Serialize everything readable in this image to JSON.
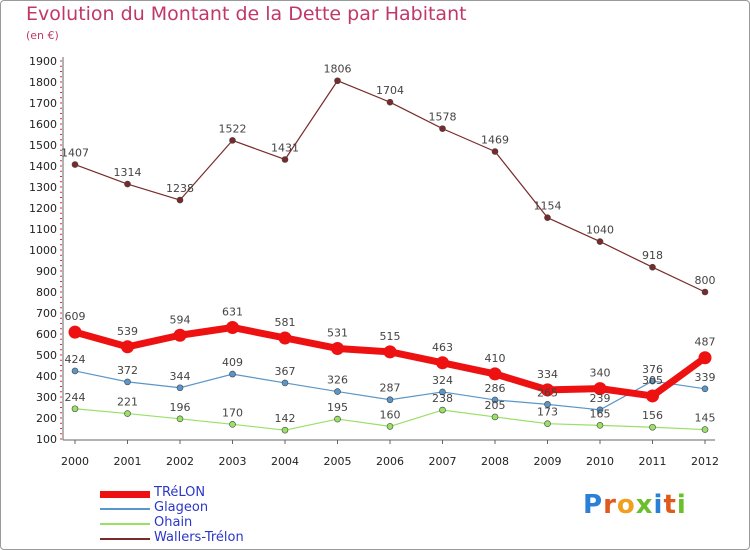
{
  "title": "Evolution du Montant de la Dette par Habitant",
  "subtitle": "(en €)",
  "logo_text": "Proxiti",
  "chart_data": {
    "type": "line",
    "title": "Evolution du Montant de la Dette par Habitant",
    "subtitle": "(en €)",
    "x": [
      "2000",
      "2001",
      "2002",
      "2003",
      "2004",
      "2005",
      "2006",
      "2007",
      "2008",
      "2009",
      "2010",
      "2011",
      "2012"
    ],
    "yticks": [
      100,
      200,
      300,
      400,
      500,
      600,
      700,
      800,
      900,
      1000,
      1100,
      1200,
      1300,
      1400,
      1500,
      1600,
      1700,
      1800,
      1900
    ],
    "ylim": [
      100,
      1900
    ],
    "grid": false,
    "legend_position": "bottom-left",
    "series": [
      {
        "name": "TRéLON",
        "color": "#ee1111",
        "values": [
          609,
          539,
          594,
          631,
          581,
          531,
          515,
          463,
          410,
          334,
          340,
          305,
          487
        ]
      },
      {
        "name": "Glageon",
        "color": "#5a96c8",
        "values": [
          424,
          372,
          344,
          409,
          367,
          326,
          287,
          324,
          286,
          265,
          239,
          376,
          339
        ]
      },
      {
        "name": "Ohain",
        "color": "#99e066",
        "values": [
          244,
          221,
          196,
          170,
          142,
          195,
          160,
          238,
          205,
          173,
          165,
          156,
          145
        ]
      },
      {
        "name": "Wallers-Trélon",
        "color": "#7a2a2a",
        "values": [
          1407,
          1314,
          1238,
          1522,
          1431,
          1806,
          1704,
          1578,
          1469,
          1154,
          1040,
          918,
          800
        ]
      }
    ]
  }
}
